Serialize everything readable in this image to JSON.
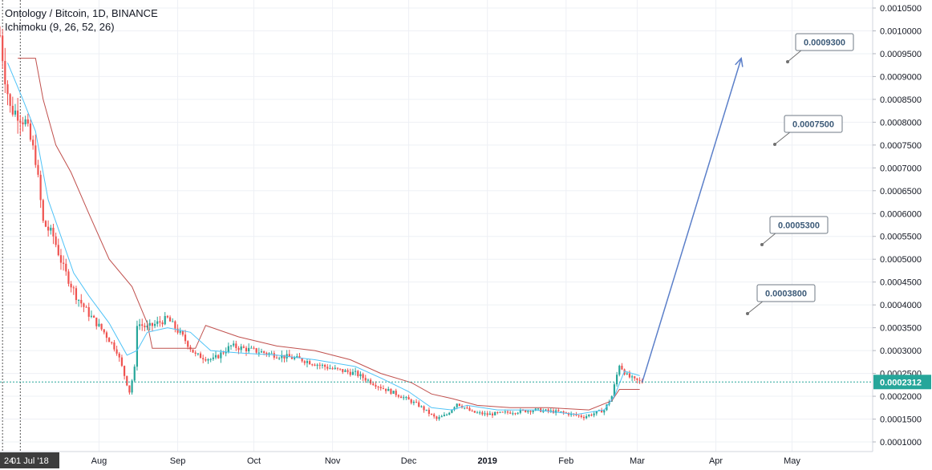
{
  "legend": {
    "title": "Ontology / Bitcoin, 1D, BINANCE",
    "indicator": "Ichimoku (9, 26, 52, 26)"
  },
  "colors": {
    "up": "#26a69a",
    "down": "#ef5350",
    "conversion": "#4fc3f7",
    "base": "#c0504d",
    "arrow": "#5b7fc9",
    "price_line": "#26a69a",
    "grid": "#eef0f5"
  },
  "chart_data": {
    "type": "candlestick",
    "title": "Ontology / Bitcoin, 1D, BINANCE",
    "ylim": [
      9.75e-05,
      0.00105
    ],
    "y_ticks": [
      "0.0010500",
      "0.0010000",
      "0.0009500",
      "0.0009000",
      "0.0008500",
      "0.0008000",
      "0.0007500",
      "0.0007000",
      "0.0006500",
      "0.0006000",
      "0.0005500",
      "0.0005000",
      "0.0004500",
      "0.0004000",
      "0.0003500",
      "0.0003000",
      "0.0002500",
      "0.0002000",
      "0.0001500",
      "0.0001000"
    ],
    "x_ticks": [
      {
        "label": "24",
        "date": "2018-06-24"
      },
      {
        "label": "01 Jul '18",
        "date": "2018-07-01"
      },
      {
        "label": "Aug",
        "date": "2018-08-01"
      },
      {
        "label": "Sep",
        "date": "2018-09-01"
      },
      {
        "label": "Oct",
        "date": "2018-10-01"
      },
      {
        "label": "Nov",
        "date": "2018-11-01"
      },
      {
        "label": "Dec",
        "date": "2018-12-01"
      },
      {
        "label": "2019",
        "date": "2019-01-01"
      },
      {
        "label": "Feb",
        "date": "2019-02-01"
      },
      {
        "label": "Mar",
        "date": "2019-03-01"
      },
      {
        "label": "Apr",
        "date": "2019-04-01"
      },
      {
        "label": "May",
        "date": "2019-05-01"
      }
    ],
    "x_range": [
      "2018-06-23",
      "2019-05-22"
    ],
    "price_path": [
      [
        "2018-06-23",
        0.00099
      ],
      [
        "2018-06-25",
        0.0009
      ],
      [
        "2018-06-27",
        0.00083
      ],
      [
        "2018-06-30",
        0.00082
      ],
      [
        "2018-07-03",
        0.0008
      ],
      [
        "2018-07-07",
        0.00072
      ],
      [
        "2018-07-10",
        0.00058
      ],
      [
        "2018-07-14",
        0.00055
      ],
      [
        "2018-07-18",
        0.00048
      ],
      [
        "2018-07-23",
        0.00042
      ],
      [
        "2018-07-28",
        0.00038
      ],
      [
        "2018-08-03",
        0.00034
      ],
      [
        "2018-08-08",
        0.0003
      ],
      [
        "2018-08-13",
        0.00021
      ],
      [
        "2018-08-15",
        0.00026
      ],
      [
        "2018-08-16",
        0.00036
      ],
      [
        "2018-08-20",
        0.00035
      ],
      [
        "2018-08-28",
        0.00037
      ],
      [
        "2018-09-03",
        0.00033
      ],
      [
        "2018-09-08",
        0.00029
      ],
      [
        "2018-09-15",
        0.00028
      ],
      [
        "2018-09-22",
        0.00031
      ],
      [
        "2018-10-01",
        0.0003
      ],
      [
        "2018-10-10",
        0.00029
      ],
      [
        "2018-10-20",
        0.00028
      ],
      [
        "2018-11-01",
        0.00026
      ],
      [
        "2018-11-10",
        0.00025
      ],
      [
        "2018-11-20",
        0.00022
      ],
      [
        "2018-11-28",
        0.0002
      ],
      [
        "2018-12-05",
        0.00018
      ],
      [
        "2018-12-12",
        0.00015
      ],
      [
        "2018-12-16",
        0.00016
      ],
      [
        "2018-12-20",
        0.000185
      ],
      [
        "2018-12-26",
        0.000165
      ],
      [
        "2019-01-01",
        0.00016
      ],
      [
        "2019-01-10",
        0.000165
      ],
      [
        "2019-01-20",
        0.00017
      ],
      [
        "2019-01-30",
        0.000165
      ],
      [
        "2019-02-08",
        0.000155
      ],
      [
        "2019-02-16",
        0.00017
      ],
      [
        "2019-02-19",
        0.0002
      ],
      [
        "2019-02-22",
        0.00027
      ],
      [
        "2019-02-25",
        0.000245
      ],
      [
        "2019-02-28",
        0.000235
      ],
      [
        "2019-03-03",
        0.0002312
      ]
    ],
    "conversion_line": [
      [
        "2018-06-26",
        0.00093
      ],
      [
        "2018-07-02",
        0.00085
      ],
      [
        "2018-07-07",
        0.00078
      ],
      [
        "2018-07-12",
        0.00063
      ],
      [
        "2018-07-17",
        0.00055
      ],
      [
        "2018-07-22",
        0.00047
      ],
      [
        "2018-07-28",
        0.00042
      ],
      [
        "2018-08-05",
        0.00036
      ],
      [
        "2018-08-12",
        0.00029
      ],
      [
        "2018-08-16",
        0.0003
      ],
      [
        "2018-08-20",
        0.00034
      ],
      [
        "2018-08-28",
        0.00035
      ],
      [
        "2018-09-06",
        0.00034
      ],
      [
        "2018-09-14",
        0.0003
      ],
      [
        "2018-09-25",
        0.000295
      ],
      [
        "2018-10-10",
        0.00029
      ],
      [
        "2018-10-25",
        0.00028
      ],
      [
        "2018-11-10",
        0.000265
      ],
      [
        "2018-11-20",
        0.00024
      ],
      [
        "2018-12-01",
        0.00021
      ],
      [
        "2018-12-10",
        0.000175
      ],
      [
        "2018-12-18",
        0.00017
      ],
      [
        "2018-12-24",
        0.00018
      ],
      [
        "2019-01-05",
        0.00017
      ],
      [
        "2019-01-20",
        0.00017
      ],
      [
        "2019-02-05",
        0.00016
      ],
      [
        "2019-02-16",
        0.00017
      ],
      [
        "2019-02-20",
        0.0002
      ],
      [
        "2019-02-24",
        0.000255
      ],
      [
        "2019-03-02",
        0.000245
      ]
    ],
    "base_line": [
      [
        "2018-06-30",
        0.00094
      ],
      [
        "2018-07-07",
        0.00094
      ],
      [
        "2018-07-10",
        0.00085
      ],
      [
        "2018-07-15",
        0.00075
      ],
      [
        "2018-07-21",
        0.00069
      ],
      [
        "2018-07-28",
        0.0006
      ],
      [
        "2018-08-05",
        0.0005
      ],
      [
        "2018-08-14",
        0.00044
      ],
      [
        "2018-08-20",
        0.00036
      ],
      [
        "2018-08-22",
        0.000305
      ],
      [
        "2018-09-08",
        0.000305
      ],
      [
        "2018-09-12",
        0.000355
      ],
      [
        "2018-09-25",
        0.00033
      ],
      [
        "2018-10-10",
        0.00031
      ],
      [
        "2018-10-25",
        0.0003
      ],
      [
        "2018-11-08",
        0.00028
      ],
      [
        "2018-11-20",
        0.00025
      ],
      [
        "2018-12-02",
        0.00023
      ],
      [
        "2018-12-10",
        0.000205
      ],
      [
        "2018-12-18",
        0.000195
      ],
      [
        "2018-12-28",
        0.00018
      ],
      [
        "2019-01-10",
        0.000175
      ],
      [
        "2019-01-25",
        0.000175
      ],
      [
        "2019-02-10",
        0.00017
      ],
      [
        "2019-02-19",
        0.00019
      ],
      [
        "2019-02-22",
        0.000215
      ],
      [
        "2019-03-02",
        0.000215
      ]
    ],
    "current_price": {
      "value": 0.0002312,
      "label": "0.0002312"
    },
    "projection_arrow": {
      "from": [
        "2019-03-03",
        0.0002312
      ],
      "to": [
        "2019-04-11",
        0.00094
      ]
    },
    "targets": [
      {
        "label": "0.0009300",
        "value": 0.00093
      },
      {
        "label": "0.0007500",
        "value": 0.00075
      },
      {
        "label": "0.0005300",
        "value": 0.00053
      },
      {
        "label": "0.0003800",
        "value": 0.00038
      }
    ]
  }
}
